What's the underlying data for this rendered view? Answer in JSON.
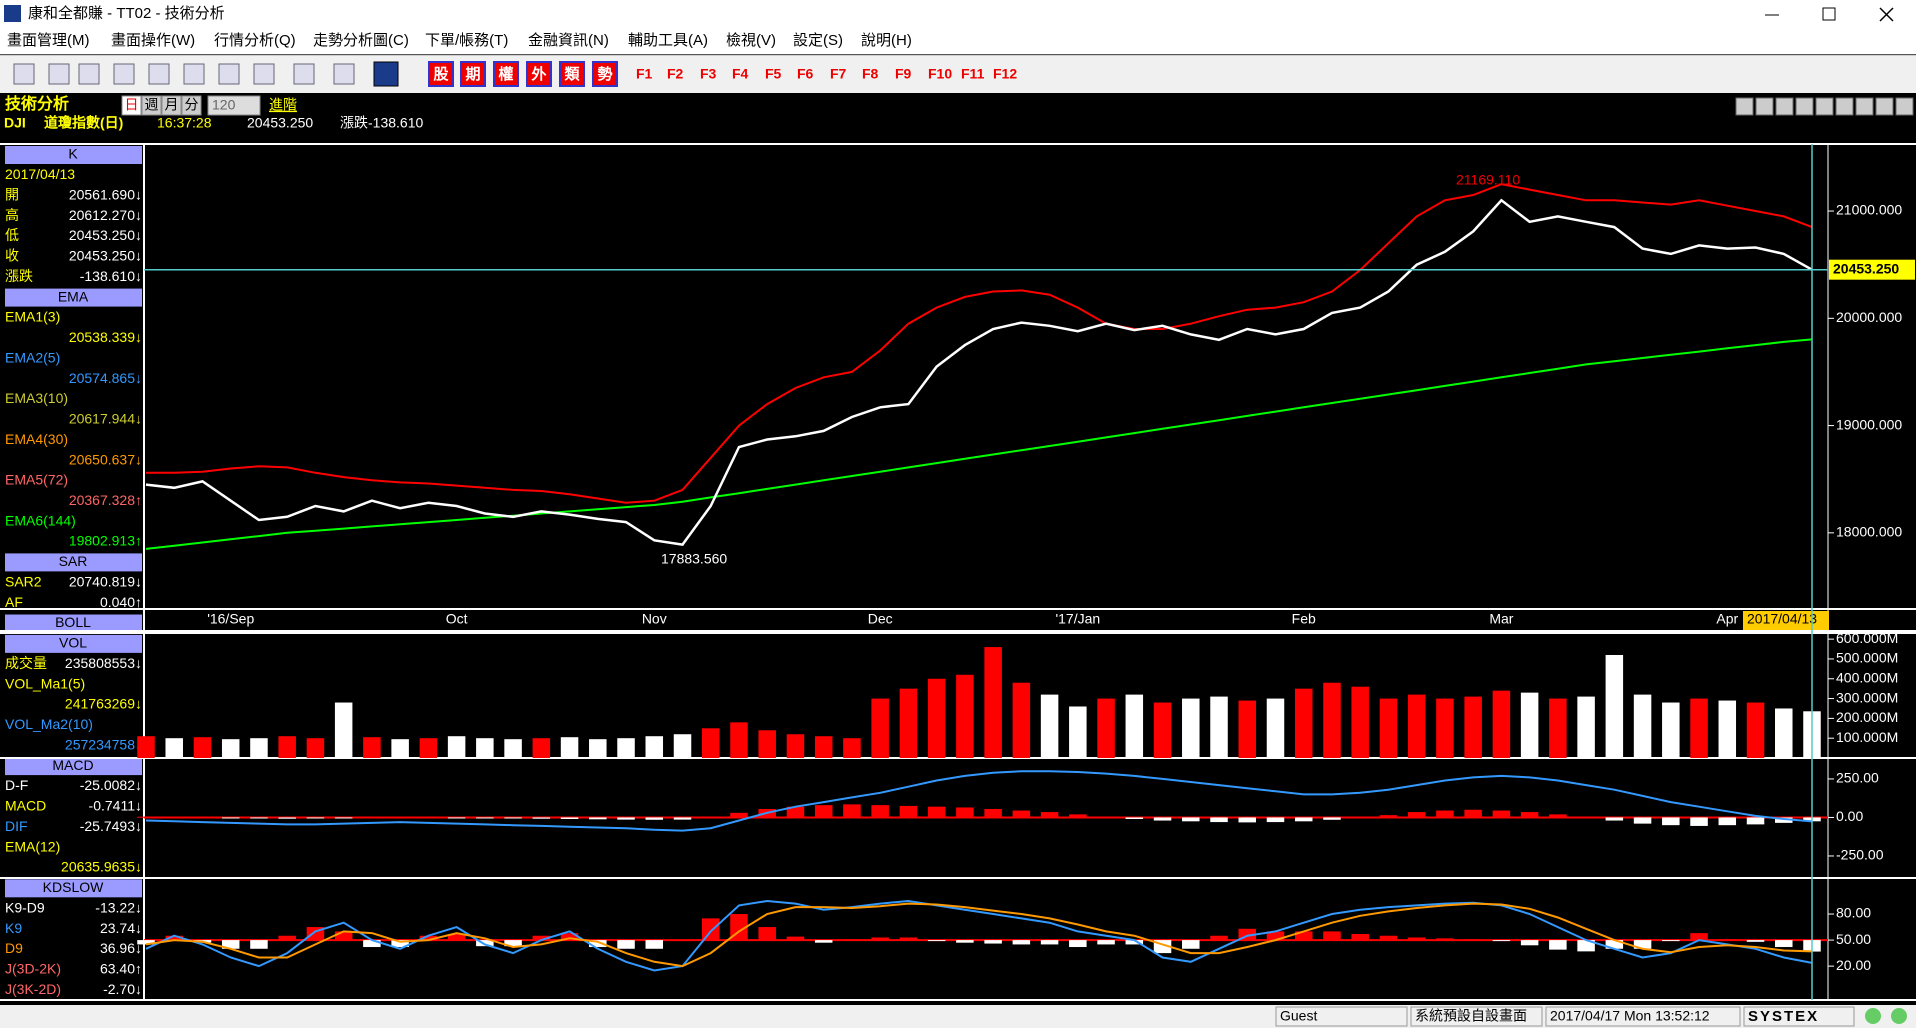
{
  "window": {
    "title": "康和全都賺 - TT02 - 技術分析"
  },
  "menu": [
    "畫面管理(M)",
    "畫面操作(W)",
    "行情分析(Q)",
    "走勢分析圖(C)",
    "下單/帳務(T)",
    "金融資訊(N)",
    "輔助工具(A)",
    "檢視(V)",
    "設定(S)",
    "說明(H)"
  ],
  "toolbar": {
    "buttons": [
      "股",
      "期",
      "權",
      "外",
      "類",
      "勢"
    ],
    "fkeys": [
      "F1",
      "F2",
      "F3",
      "F4",
      "F5",
      "F6",
      "F7",
      "F8",
      "F9",
      "F10",
      "F11",
      "F12"
    ]
  },
  "header": {
    "title": "技術分析",
    "periods": [
      "日",
      "週",
      "月",
      "分"
    ],
    "count": "120",
    "advanced": "進階",
    "symbol": "DJI",
    "name": "道瓊指數(日)",
    "time": "16:37:28",
    "price": "20453.250",
    "change": "漲跌-138.610"
  },
  "left_panel": [
    {
      "header": "K"
    },
    {
      "value": "2017/04/13",
      "color": "#ffff00"
    },
    {
      "label": "開",
      "value": "20561.690↓",
      "color": "#ffff00"
    },
    {
      "label": "高",
      "value": "20612.270↓",
      "color": "#ffff00"
    },
    {
      "label": "低",
      "value": "20453.250↓",
      "color": "#ffff00"
    },
    {
      "label": "收",
      "value": "20453.250↓",
      "color": "#ffff00"
    },
    {
      "label": "漲跌",
      "value": "-138.610↓",
      "color": "#ffff00"
    },
    {
      "header": "EMA"
    },
    {
      "label": "EMA1(3)",
      "color": "#ffff00"
    },
    {
      "value": "20538.339↓",
      "color": "#ffff00"
    },
    {
      "label": "EMA2(5)",
      "color": "#3399ff"
    },
    {
      "value": "20574.865↓",
      "color": "#3399ff"
    },
    {
      "label": "EMA3(10)",
      "color": "#cccc33"
    },
    {
      "value": "20617.944↓",
      "color": "#cccc33"
    },
    {
      "label": "EMA4(30)",
      "color": "#ff9900"
    },
    {
      "value": "20650.637↓",
      "color": "#ff9900"
    },
    {
      "label": "EMA5(72)",
      "color": "#ff6666"
    },
    {
      "value": "20367.328↑",
      "color": "#ff6666"
    },
    {
      "label": "EMA6(144)",
      "color": "#00ff00"
    },
    {
      "value": "19802.913↑",
      "color": "#00ff00"
    },
    {
      "header": "SAR"
    },
    {
      "label": "SAR2",
      "value": "20740.819↓",
      "color": "#ffff00"
    },
    {
      "label": "AF",
      "value": "0.040↑",
      "color": "#ffff00"
    },
    {
      "header": "BOLL"
    },
    {
      "header": "VOL"
    },
    {
      "label": "成交量",
      "value": "235808553↓",
      "color": "#ffff00"
    },
    {
      "label": "VOL_Ma1(5)",
      "color": "#ffff00"
    },
    {
      "value": "241763269↓",
      "color": "#ffff00"
    },
    {
      "label": "VOL_Ma2(10)",
      "color": "#3399ff"
    },
    {
      "value": "257234758↓",
      "color": "#3399ff"
    },
    {
      "header": "MACD"
    },
    {
      "label": "D-F",
      "value": "-25.0082↓",
      "color": "#ffffff"
    },
    {
      "label": "MACD",
      "value": "-0.7411↓",
      "color": "#ffff00"
    },
    {
      "label": "DIF",
      "value": "-25.7493↓",
      "color": "#3399ff"
    },
    {
      "label": "EMA(12)",
      "color": "#ffff00"
    },
    {
      "value": "20635.9635↓",
      "color": "#ffff00"
    },
    {
      "header": "KDSLOW"
    },
    {
      "label": "K9-D9",
      "value": "-13.22↓",
      "color": "#ffffff"
    },
    {
      "label": "K9",
      "value": "23.74↓",
      "color": "#3399ff"
    },
    {
      "label": "D9",
      "value": "36.96↓",
      "color": "#ff9900"
    },
    {
      "label": "J(3D-2K)",
      "value": "63.40↑",
      "color": "#ff6666"
    },
    {
      "label": "J(3K-2D)",
      "value": "-2.70↓",
      "color": "#ff6666"
    }
  ],
  "chart_data": [
    {
      "type": "line",
      "categories": [
        null,
        null,
        null,
        "'16/Sep",
        null,
        null,
        null,
        null,
        null,
        null,
        null,
        "Oct",
        null,
        null,
        null,
        null,
        null,
        null,
        "Nov",
        null,
        null,
        null,
        null,
        null,
        null,
        null,
        "Dec",
        null,
        null,
        null,
        null,
        null,
        null,
        "'17/Jan",
        null,
        null,
        null,
        null,
        null,
        null,
        null,
        "Feb",
        null,
        null,
        null,
        null,
        null,
        null,
        "Mar",
        null,
        null,
        null,
        null,
        null,
        null,
        null,
        "Apr",
        null,
        null,
        "2017/04/13"
      ],
      "ylim": [
        17290,
        21625
      ],
      "yticks": [
        {
          "value": 21000,
          "label": "21000.000"
        },
        {
          "value": 20000,
          "label": "20000.000"
        },
        {
          "value": 19000,
          "label": "19000.000"
        },
        {
          "value": 18000,
          "label": "18000.000"
        }
      ],
      "annotations": {
        "high": "21169.110",
        "low": "17883.560",
        "last": "20453.250"
      },
      "series": [
        {
          "name": "BOLL",
          "color": "#ff0000",
          "values": [
            18560,
            18560,
            18570,
            18600,
            18620,
            18610,
            18560,
            18520,
            18490,
            18470,
            18460,
            18440,
            18420,
            18400,
            18390,
            18360,
            18320,
            18280,
            18300,
            18400,
            18700,
            19000,
            19200,
            19350,
            19450,
            19500,
            19700,
            19950,
            20100,
            20200,
            20250,
            20260,
            20220,
            20100,
            19950,
            19900,
            19900,
            19950,
            20020,
            20080,
            20100,
            20150,
            20250,
            20450,
            20700,
            20950,
            21100,
            21150,
            21250,
            21200,
            21150,
            21100,
            21100,
            21080,
            21060,
            21100,
            21050,
            21000,
            20950,
            20850
          ]
        },
        {
          "name": "EMA6(144)",
          "color": "#00ff00",
          "values": [
            17850,
            17880,
            17910,
            17940,
            17970,
            18000,
            18020,
            18040,
            18060,
            18080,
            18100,
            18120,
            18140,
            18160,
            18180,
            18200,
            18220,
            18240,
            18260,
            18290,
            18330,
            18370,
            18410,
            18450,
            18490,
            18530,
            18570,
            18610,
            18650,
            18690,
            18730,
            18770,
            18810,
            18850,
            18890,
            18930,
            18970,
            19010,
            19050,
            19090,
            19130,
            19170,
            19210,
            19250,
            19290,
            19330,
            19370,
            19410,
            19450,
            19490,
            19530,
            19570,
            19600,
            19630,
            19660,
            19690,
            19720,
            19750,
            19780,
            19802.913
          ]
        },
        {
          "name": "收",
          "color": "#ffffff",
          "values": [
            18450,
            18420,
            18480,
            18300,
            18120,
            18150,
            18250,
            18200,
            18300,
            18230,
            18280,
            18250,
            18180,
            18150,
            18200,
            18170,
            18130,
            18100,
            17930,
            17890,
            18250,
            18800,
            18870,
            18900,
            18950,
            19080,
            19170,
            19200,
            19550,
            19750,
            19900,
            19960,
            19930,
            19880,
            19950,
            19890,
            19930,
            19850,
            19800,
            19900,
            19850,
            19900,
            20050,
            20100,
            20250,
            20500,
            20620,
            20810,
            21100,
            20900,
            20950,
            20900,
            20850,
            20650,
            20600,
            20680,
            20650,
            20660,
            20600,
            20453.25
          ]
        }
      ]
    },
    {
      "type": "bar",
      "ylim": [
        0,
        631000000
      ],
      "yticks": [
        {
          "value": 600000000,
          "label": "600.000M"
        },
        {
          "value": 500000000,
          "label": "500.000M"
        },
        {
          "value": 400000000,
          "label": "400.000M"
        },
        {
          "value": 300000000,
          "label": "300.000M"
        },
        {
          "value": 200000000,
          "label": "200.000M"
        },
        {
          "value": 100000000,
          "label": "100.000M"
        }
      ],
      "series": [
        {
          "name": "成交量",
          "color": "#ff0000",
          "negative_color": "#ffffff",
          "values": [
            110000000,
            100000000,
            105000000,
            95000000,
            100000000,
            110000000,
            100000000,
            280000000,
            105000000,
            95000000,
            100000000,
            110000000,
            100000000,
            95000000,
            100000000,
            105000000,
            95000000,
            100000000,
            110000000,
            120000000,
            150000000,
            180000000,
            140000000,
            120000000,
            110000000,
            100000000,
            300000000,
            350000000,
            400000000,
            420000000,
            560000000,
            380000000,
            320000000,
            260000000,
            300000000,
            320000000,
            280000000,
            300000000,
            310000000,
            290000000,
            300000000,
            350000000,
            380000000,
            360000000,
            300000000,
            320000000,
            300000000,
            310000000,
            340000000,
            330000000,
            300000000,
            310000000,
            520000000,
            320000000,
            280000000,
            300000000,
            290000000,
            280000000,
            250000000,
            235808553
          ]
        }
      ]
    },
    {
      "type": "bar",
      "ylim": [
        -393,
        386
      ],
      "yticks": [
        {
          "value": 250,
          "label": "250.00"
        },
        {
          "value": 0,
          "label": "0.00"
        },
        {
          "value": -250,
          "label": "-250.00"
        }
      ],
      "baseline": 0,
      "series": [
        {
          "name": "D-F",
          "type": "bar",
          "color": "#ff0000",
          "negative_color": "#ffffff",
          "values": [
            5,
            3,
            0,
            -3,
            -5,
            -8,
            -6,
            -3,
            0,
            3,
            0,
            -3,
            -5,
            -6,
            -8,
            -10,
            -12,
            -14,
            -15,
            -14,
            0,
            30,
            55,
            70,
            80,
            85,
            80,
            75,
            70,
            65,
            55,
            45,
            35,
            20,
            5,
            -10,
            -20,
            -25,
            -30,
            -32,
            -30,
            -25,
            -15,
            0,
            15,
            35,
            45,
            50,
            45,
            35,
            20,
            0,
            -20,
            -40,
            -50,
            -55,
            -50,
            -45,
            -35,
            -25.0082
          ]
        },
        {
          "name": "DIF",
          "type": "line",
          "color": "#3399ff",
          "values": [
            -20,
            -25,
            -30,
            -35,
            -40,
            -45,
            -45,
            -40,
            -35,
            -30,
            -35,
            -40,
            -45,
            -50,
            -55,
            -60,
            -65,
            -70,
            -80,
            -85,
            -70,
            -20,
            30,
            70,
            100,
            130,
            160,
            200,
            240,
            270,
            290,
            300,
            300,
            295,
            285,
            270,
            250,
            230,
            210,
            190,
            170,
            150,
            150,
            160,
            180,
            210,
            240,
            260,
            270,
            260,
            240,
            210,
            180,
            140,
            100,
            70,
            40,
            10,
            -10,
            -25.7493
          ]
        }
      ]
    },
    {
      "type": "bar",
      "ylim": [
        -19,
        121.5
      ],
      "yticks": [
        {
          "value": 80,
          "label": "80.00"
        },
        {
          "value": 50,
          "label": "50.00"
        },
        {
          "value": 20,
          "label": "20.00"
        }
      ],
      "baseline": 50,
      "series": [
        {
          "name": "K9-D9",
          "type": "bar",
          "color": "#ff0000",
          "negative_color": "#ffffff",
          "values": [
            -5,
            5,
            -3,
            -10,
            -10,
            5,
            15,
            10,
            -8,
            -8,
            5,
            7,
            -7,
            -7,
            5,
            8,
            -8,
            -10,
            -10,
            0,
            25,
            30,
            15,
            4,
            -3,
            1,
            3,
            3,
            -1,
            -3,
            -4,
            -5,
            -5,
            -8,
            -5,
            -5,
            -15,
            -10,
            5,
            13,
            10,
            10,
            10,
            7,
            5,
            3,
            2,
            1,
            -1,
            -6,
            -11,
            -13,
            -10,
            -10,
            -1,
            8,
            1,
            -2,
            -8,
            -13.22
          ]
        },
        {
          "name": "K9",
          "type": "line",
          "color": "#3399ff",
          "values": [
            40,
            55,
            45,
            30,
            20,
            35,
            60,
            70,
            50,
            40,
            55,
            65,
            45,
            35,
            50,
            60,
            40,
            25,
            15,
            20,
            60,
            90,
            95,
            92,
            85,
            88,
            92,
            95,
            90,
            85,
            80,
            75,
            70,
            60,
            55,
            50,
            30,
            25,
            40,
            55,
            60,
            70,
            80,
            85,
            88,
            90,
            92,
            93,
            90,
            80,
            65,
            50,
            40,
            30,
            35,
            50,
            45,
            40,
            30,
            23.74
          ]
        },
        {
          "name": "D9",
          "type": "line",
          "color": "#ff9900",
          "values": [
            45,
            50,
            48,
            40,
            30,
            30,
            45,
            60,
            58,
            48,
            50,
            58,
            52,
            42,
            45,
            52,
            48,
            35,
            25,
            20,
            35,
            60,
            80,
            88,
            88,
            87,
            89,
            92,
            91,
            88,
            84,
            80,
            75,
            68,
            60,
            55,
            45,
            35,
            35,
            42,
            50,
            60,
            70,
            78,
            83,
            87,
            90,
            92,
            91,
            86,
            76,
            63,
            50,
            40,
            36,
            42,
            44,
            42,
            38,
            36.96
          ]
        }
      ]
    }
  ],
  "status": [
    "Guest",
    "系統預設自設畫面",
    "2017/04/17 Mon 13:52:12",
    "SYSTEX"
  ]
}
